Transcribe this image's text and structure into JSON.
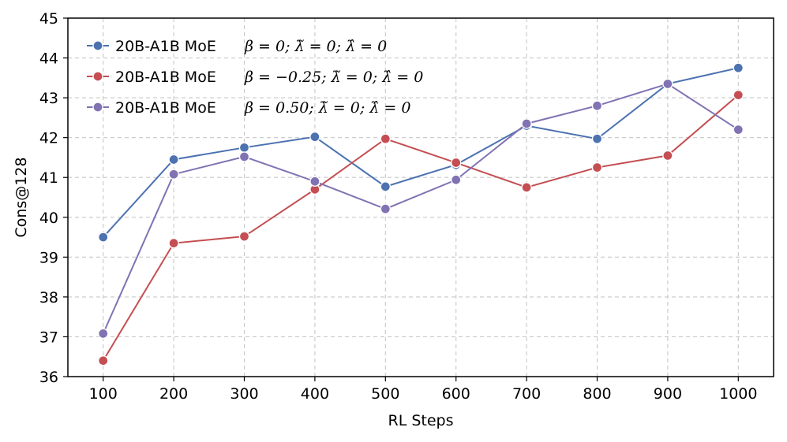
{
  "chart_data": {
    "type": "line",
    "title": "",
    "xlabel": "RL Steps",
    "ylabel": "Cons@128",
    "x": [
      100,
      200,
      300,
      400,
      500,
      600,
      700,
      800,
      900,
      1000
    ],
    "xlim": [
      50,
      1050
    ],
    "ylim": [
      36,
      45
    ],
    "yticks": [
      36,
      37,
      38,
      39,
      40,
      41,
      42,
      43,
      44,
      45
    ],
    "grid": true,
    "legend_position": "top-left",
    "series": [
      {
        "name": "20B-A1B MoE",
        "params": "β = 0;  λ̃ = 0;  λ̂ = 0",
        "color": "#4c72b0",
        "values": [
          39.5,
          41.45,
          41.75,
          42.02,
          40.77,
          41.32,
          42.3,
          41.97,
          43.35,
          43.75
        ]
      },
      {
        "name": "20B-A1B MoE",
        "params": "β = −0.25;  λ̃ = 0;  λ̂ = 0",
        "color": "#c44e52",
        "values": [
          36.4,
          39.35,
          39.52,
          40.7,
          41.97,
          41.37,
          40.75,
          41.25,
          41.55,
          43.07
        ]
      },
      {
        "name": "20B-A1B MoE",
        "params": "β = 0.50;  λ̃ = 0;  λ̂ = 0",
        "color": "#8172b3",
        "values": [
          37.08,
          41.08,
          41.52,
          40.9,
          40.21,
          40.94,
          42.35,
          42.8,
          43.35,
          42.2
        ]
      }
    ]
  }
}
